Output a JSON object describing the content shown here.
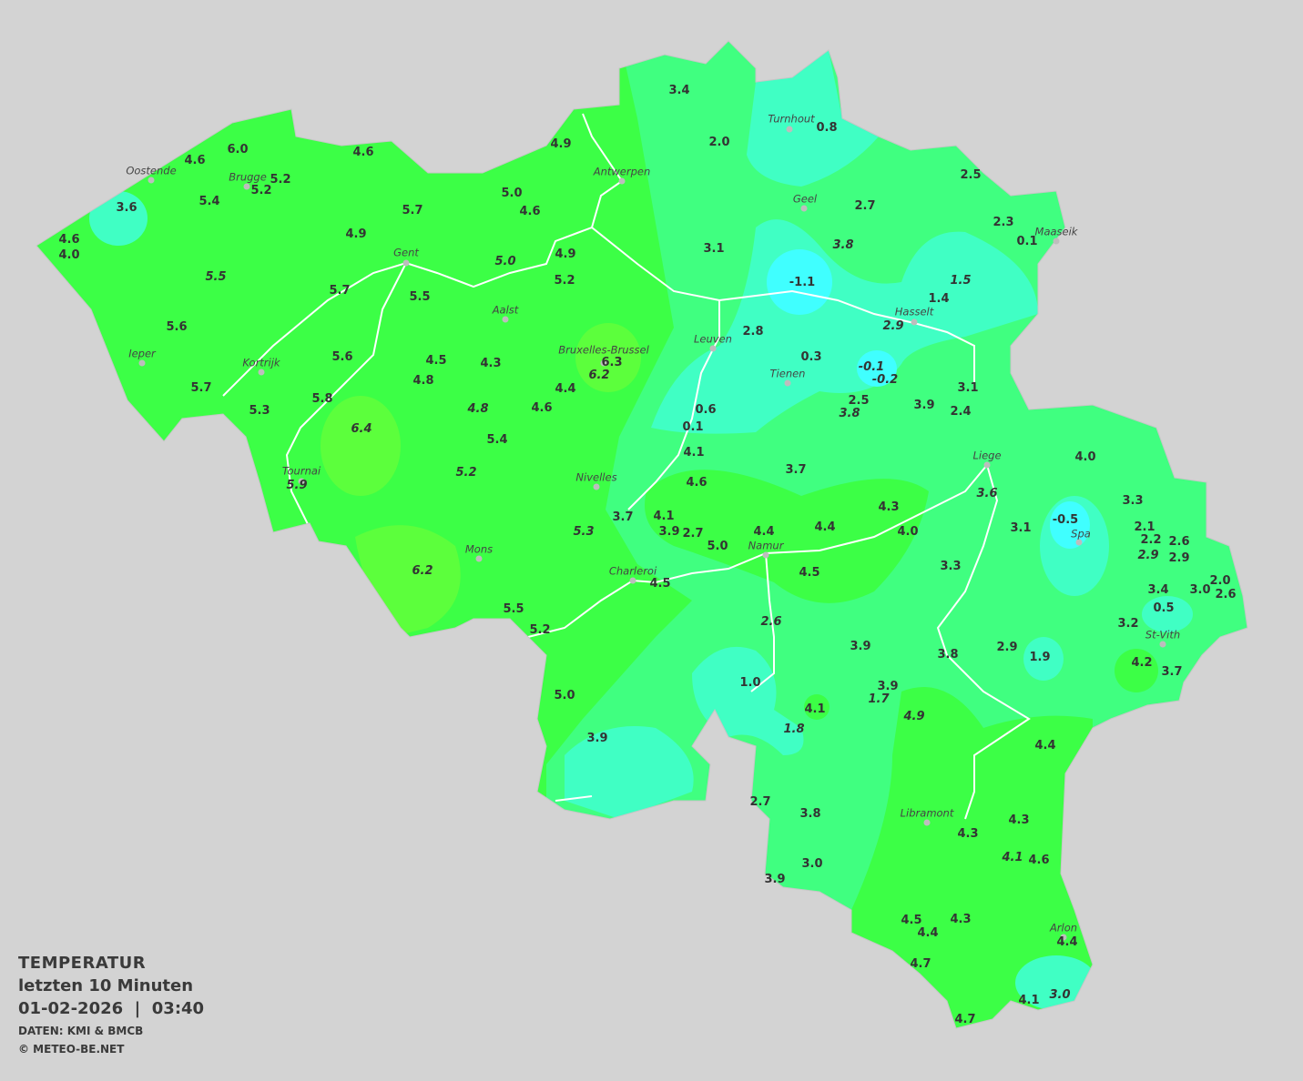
{
  "title": "TEMPERATUR",
  "subtitle": "letzten 10 Minuten",
  "datetime": "01-02-2026  |  03:40",
  "source": "DATEN: KMI & BMCB",
  "copyright": "© METEO-BE.NET",
  "colors": {
    "background": "#d3d3d3",
    "band_6": "#5cff3c",
    "band_4": "#3cff46",
    "band_2": "#40ff80",
    "band_0": "#40ffc4",
    "band_neg": "#40ffff",
    "rivers": "#ffffff",
    "text": "#333333"
  },
  "cities": [
    "Oostende",
    "Brugge",
    "Antwerpen",
    "Turnhout",
    "Geel",
    "Maaseik",
    "Gent",
    "Aalst",
    "Hasselt",
    "Leuven",
    "Bruxelles-Brussel",
    "Ieper",
    "Kortrijk",
    "Tienen",
    "Liege",
    "Tournai",
    "Nivelles",
    "Spa",
    "Namur",
    "Mons",
    "Charleroi",
    "St-Vith",
    "Libramont",
    "Arlon"
  ],
  "stations": [
    {
      "v": "3.4"
    },
    {
      "v": "2.0"
    },
    {
      "v": "0.8"
    },
    {
      "v": "4.9"
    },
    {
      "v": "6.0"
    },
    {
      "v": "4.6"
    },
    {
      "v": "4.6"
    },
    {
      "v": "5.2"
    },
    {
      "v": "5.2"
    },
    {
      "v": "5.4"
    },
    {
      "v": "3.6"
    },
    {
      "v": "5.0"
    },
    {
      "v": "4.6"
    },
    {
      "v": "5.7"
    },
    {
      "v": "2.5"
    },
    {
      "v": "2.7"
    },
    {
      "v": "2.3"
    },
    {
      "v": "0.1"
    },
    {
      "v": "4.6"
    },
    {
      "v": "4.0"
    },
    {
      "v": "4.9"
    },
    {
      "v": "3.1"
    },
    {
      "v": "3.8",
      "italic": true
    },
    {
      "v": "4.9"
    },
    {
      "v": "5.0",
      "italic": true
    },
    {
      "v": "5.5",
      "italic": true
    },
    {
      "v": "5.2"
    },
    {
      "v": "-1.1"
    },
    {
      "v": "1.5",
      "italic": true
    },
    {
      "v": "5.7"
    },
    {
      "v": "5.5"
    },
    {
      "v": "1.4"
    },
    {
      "v": "2.9",
      "italic": true
    },
    {
      "v": "5.6"
    },
    {
      "v": "2.8"
    },
    {
      "v": "0.3"
    },
    {
      "v": "5.6"
    },
    {
      "v": "4.5"
    },
    {
      "v": "4.3"
    },
    {
      "v": "6.3"
    },
    {
      "v": "6.2",
      "italic": true
    },
    {
      "v": "-0.1",
      "italic": true
    },
    {
      "v": "-0.2",
      "italic": true
    },
    {
      "v": "4.8"
    },
    {
      "v": "5.7"
    },
    {
      "v": "4.4"
    },
    {
      "v": "3.1"
    },
    {
      "v": "5.8"
    },
    {
      "v": "2.5"
    },
    {
      "v": "5.3"
    },
    {
      "v": "4.8",
      "italic": true
    },
    {
      "v": "4.6"
    },
    {
      "v": "0.6"
    },
    {
      "v": "3.9"
    },
    {
      "v": "2.4"
    },
    {
      "v": "3.8",
      "italic": true
    },
    {
      "v": "0.1"
    },
    {
      "v": "6.4",
      "italic": true
    },
    {
      "v": "5.4"
    },
    {
      "v": "4.1"
    },
    {
      "v": "4.0"
    },
    {
      "v": "3.7"
    },
    {
      "v": "5.2",
      "italic": true
    },
    {
      "v": "4.6"
    },
    {
      "v": "5.9",
      "italic": true
    },
    {
      "v": "3.6",
      "italic": true
    },
    {
      "v": "3.3"
    },
    {
      "v": "4.3"
    },
    {
      "v": "3.7"
    },
    {
      "v": "4.1"
    },
    {
      "v": "-0.5"
    },
    {
      "v": "2.1"
    },
    {
      "v": "3.1"
    },
    {
      "v": "3.9"
    },
    {
      "v": "2.7"
    },
    {
      "v": "4.4"
    },
    {
      "v": "4.4"
    },
    {
      "v": "4.0"
    },
    {
      "v": "5.3",
      "italic": true
    },
    {
      "v": "2.2"
    },
    {
      "v": "2.6"
    },
    {
      "v": "5.0"
    },
    {
      "v": "2.9",
      "italic": true
    },
    {
      "v": "2.9"
    },
    {
      "v": "6.2",
      "italic": true
    },
    {
      "v": "3.3"
    },
    {
      "v": "4.5"
    },
    {
      "v": "3.4"
    },
    {
      "v": "3.0"
    },
    {
      "v": "2.0"
    },
    {
      "v": "2.6"
    },
    {
      "v": "4.5"
    },
    {
      "v": "0.5"
    },
    {
      "v": "5.5"
    },
    {
      "v": "2.6",
      "italic": true
    },
    {
      "v": "3.2"
    },
    {
      "v": "5.2"
    },
    {
      "v": "3.9"
    },
    {
      "v": "2.9"
    },
    {
      "v": "3.8"
    },
    {
      "v": "1.9"
    },
    {
      "v": "4.2"
    },
    {
      "v": "3.7"
    },
    {
      "v": "1.0"
    },
    {
      "v": "3.9"
    },
    {
      "v": "1.7",
      "italic": true
    },
    {
      "v": "5.0"
    },
    {
      "v": "4.1"
    },
    {
      "v": "4.9",
      "italic": true
    },
    {
      "v": "1.8",
      "italic": true
    },
    {
      "v": "3.9"
    },
    {
      "v": "4.4"
    },
    {
      "v": "2.7"
    },
    {
      "v": "3.8"
    },
    {
      "v": "4.3"
    },
    {
      "v": "4.3"
    },
    {
      "v": "4.1",
      "italic": true
    },
    {
      "v": "4.6"
    },
    {
      "v": "3.0"
    },
    {
      "v": "3.9"
    },
    {
      "v": "4.5"
    },
    {
      "v": "4.3"
    },
    {
      "v": "4.4"
    },
    {
      "v": "4.4"
    },
    {
      "v": "4.7"
    },
    {
      "v": "3.0",
      "italic": true
    },
    {
      "v": "4.1"
    },
    {
      "v": "4.7"
    }
  ]
}
